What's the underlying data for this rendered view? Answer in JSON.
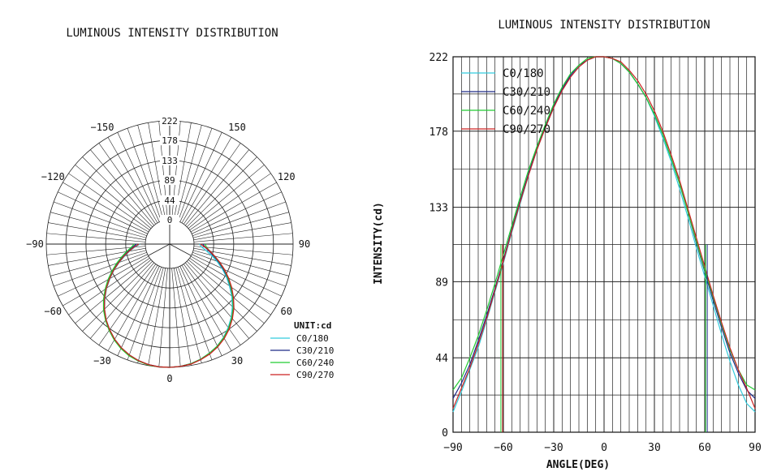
{
  "chart_data": [
    {
      "type": "polar",
      "title": "LUMINOUS INTENSITY DISTRIBUTION",
      "unit_label": "UNIT:cd",
      "radial_ticks": [
        0,
        44,
        89,
        133,
        178,
        222
      ],
      "radial_tick_labels": [
        "0",
        "44",
        "89",
        "133",
        "178",
        "222"
      ],
      "rmax": 222,
      "angle_labels": [
        {
          "angle": 0,
          "text": "0"
        },
        {
          "angle": 30,
          "text": "30"
        },
        {
          "angle": 60,
          "text": "60"
        },
        {
          "angle": 90,
          "text": "90"
        },
        {
          "angle": 150,
          "text": "150"
        },
        {
          "angle": 120,
          "text": "120"
        },
        {
          "angle": -30,
          "text": "−30"
        },
        {
          "angle": -60,
          "text": "−60"
        },
        {
          "angle": -90,
          "text": "−90"
        },
        {
          "angle": -120,
          "text": "−120"
        },
        {
          "angle": -150,
          "text": "−150"
        }
      ],
      "legend_position": "bottom-right",
      "series": [
        {
          "name": "C0/180",
          "color": "#33ccdd",
          "angles": [
            -90,
            -85,
            -80,
            -75,
            -70,
            -65,
            -60,
            -55,
            -50,
            -45,
            -40,
            -35,
            -30,
            -25,
            -20,
            -15,
            -10,
            -5,
            0,
            5,
            10,
            15,
            20,
            25,
            30,
            35,
            40,
            45,
            50,
            55,
            60,
            65,
            70,
            75,
            80,
            85,
            90
          ],
          "values": [
            12,
            24,
            37,
            50,
            66,
            83,
            100,
            118,
            135,
            152,
            167,
            180,
            192,
            202,
            210,
            216,
            220,
            222,
            222,
            221,
            218,
            213,
            206,
            198,
            187,
            174,
            160,
            144,
            127,
            109,
            92,
            75,
            58,
            42,
            28,
            17,
            12
          ]
        },
        {
          "name": "C30/210",
          "color": "#1f2a88",
          "angles": [
            -90,
            -85,
            -80,
            -75,
            -70,
            -65,
            -60,
            -55,
            -50,
            -45,
            -40,
            -35,
            -30,
            -25,
            -20,
            -15,
            -10,
            -5,
            0,
            5,
            10,
            15,
            20,
            25,
            30,
            35,
            40,
            45,
            50,
            55,
            60,
            65,
            70,
            75,
            80,
            85,
            90
          ],
          "values": [
            20,
            29,
            40,
            54,
            69,
            85,
            102,
            120,
            137,
            153,
            168,
            181,
            193,
            203,
            211,
            217,
            220,
            222,
            222,
            221,
            218,
            213,
            206,
            198,
            188,
            176,
            162,
            147,
            130,
            112,
            95,
            78,
            62,
            47,
            35,
            25,
            20
          ]
        },
        {
          "name": "C60/240",
          "color": "#22cc33",
          "angles": [
            -90,
            -85,
            -80,
            -75,
            -70,
            -65,
            -60,
            -55,
            -50,
            -45,
            -40,
            -35,
            -30,
            -25,
            -20,
            -15,
            -10,
            -5,
            0,
            5,
            10,
            15,
            20,
            25,
            30,
            35,
            40,
            45,
            50,
            55,
            60,
            65,
            70,
            75,
            80,
            85,
            90
          ],
          "values": [
            25,
            32,
            44,
            57,
            72,
            88,
            105,
            122,
            139,
            155,
            169,
            182,
            194,
            204,
            212,
            217,
            221,
            222,
            222,
            221,
            218,
            213,
            206,
            198,
            188,
            176,
            162,
            147,
            130,
            113,
            96,
            80,
            64,
            49,
            37,
            28,
            25
          ]
        },
        {
          "name": "C90/270",
          "color": "#cc2222",
          "angles": [
            -90,
            -85,
            -80,
            -75,
            -70,
            -65,
            -60,
            -55,
            -50,
            -45,
            -40,
            -35,
            -30,
            -25,
            -20,
            -15,
            -10,
            -5,
            0,
            5,
            10,
            15,
            20,
            25,
            30,
            35,
            40,
            45,
            50,
            55,
            60,
            65,
            70,
            75,
            80,
            85,
            90
          ],
          "values": [
            14,
            26,
            38,
            52,
            67,
            84,
            101,
            119,
            136,
            152,
            167,
            180,
            192,
            202,
            210,
            216,
            220,
            222,
            222,
            221,
            219,
            214,
            208,
            200,
            190,
            178,
            164,
            149,
            132,
            115,
            98,
            81,
            65,
            50,
            37,
            26,
            14
          ]
        }
      ]
    },
    {
      "type": "line",
      "title": "LUMINOUS INTENSITY DISTRIBUTION",
      "xlabel": "ANGLE(DEG)",
      "ylabel": "INTENSITY(cd)",
      "xlim": [
        -90,
        90
      ],
      "ylim": [
        0,
        222
      ],
      "xticks": [
        -90,
        -60,
        -30,
        0,
        30,
        60,
        90
      ],
      "xtick_labels": [
        "−90",
        "−60",
        "−30",
        "0",
        "30",
        "60",
        "90"
      ],
      "yticks": [
        0,
        44,
        89,
        133,
        178,
        222
      ],
      "ytick_labels": [
        "0",
        "44",
        "89",
        "133",
        "178",
        "222"
      ],
      "grid": true,
      "legend_position": "top-left",
      "series": [
        {
          "name": "C0/180",
          "color": "#33ccdd",
          "x": [
            -90,
            -85,
            -80,
            -75,
            -70,
            -65,
            -60,
            -55,
            -50,
            -45,
            -40,
            -35,
            -30,
            -25,
            -20,
            -15,
            -10,
            -5,
            0,
            5,
            10,
            15,
            20,
            25,
            30,
            35,
            40,
            45,
            50,
            55,
            60,
            65,
            70,
            75,
            80,
            85,
            90
          ],
          "y": [
            12,
            24,
            37,
            50,
            66,
            83,
            100,
            118,
            135,
            152,
            167,
            180,
            192,
            202,
            210,
            216,
            220,
            222,
            222,
            221,
            218,
            213,
            206,
            198,
            187,
            174,
            160,
            144,
            127,
            109,
            92,
            75,
            58,
            42,
            28,
            17,
            12
          ]
        },
        {
          "name": "C30/210",
          "color": "#1f2a88",
          "x": [
            -90,
            -85,
            -80,
            -75,
            -70,
            -65,
            -60,
            -55,
            -50,
            -45,
            -40,
            -35,
            -30,
            -25,
            -20,
            -15,
            -10,
            -5,
            0,
            5,
            10,
            15,
            20,
            25,
            30,
            35,
            40,
            45,
            50,
            55,
            60,
            65,
            70,
            75,
            80,
            85,
            90
          ],
          "y": [
            20,
            29,
            40,
            54,
            69,
            85,
            102,
            120,
            137,
            153,
            168,
            181,
            193,
            203,
            211,
            217,
            220,
            222,
            222,
            221,
            218,
            213,
            206,
            198,
            188,
            176,
            162,
            147,
            130,
            112,
            95,
            78,
            62,
            47,
            35,
            25,
            20
          ]
        },
        {
          "name": "C60/240",
          "color": "#22cc33",
          "x": [
            -90,
            -85,
            -80,
            -75,
            -70,
            -65,
            -60,
            -55,
            -50,
            -45,
            -40,
            -35,
            -30,
            -25,
            -20,
            -15,
            -10,
            -5,
            0,
            5,
            10,
            15,
            20,
            25,
            30,
            35,
            40,
            45,
            50,
            55,
            60,
            65,
            70,
            75,
            80,
            85,
            90
          ],
          "y": [
            25,
            32,
            44,
            57,
            72,
            88,
            105,
            122,
            139,
            155,
            169,
            182,
            194,
            204,
            212,
            217,
            221,
            222,
            222,
            221,
            218,
            213,
            206,
            198,
            188,
            176,
            162,
            147,
            130,
            113,
            96,
            80,
            64,
            49,
            37,
            28,
            25
          ]
        },
        {
          "name": "C90/270",
          "color": "#cc2222",
          "x": [
            -90,
            -85,
            -80,
            -75,
            -70,
            -65,
            -60,
            -55,
            -50,
            -45,
            -40,
            -35,
            -30,
            -25,
            -20,
            -15,
            -10,
            -5,
            0,
            5,
            10,
            15,
            20,
            25,
            30,
            35,
            40,
            45,
            50,
            55,
            60,
            65,
            70,
            75,
            80,
            85,
            90
          ],
          "y": [
            14,
            26,
            38,
            52,
            67,
            84,
            101,
            119,
            136,
            152,
            167,
            180,
            192,
            202,
            210,
            216,
            220,
            222,
            222,
            221,
            219,
            214,
            208,
            200,
            190,
            178,
            164,
            149,
            132,
            115,
            98,
            81,
            65,
            50,
            37,
            26,
            14
          ]
        }
      ]
    }
  ]
}
